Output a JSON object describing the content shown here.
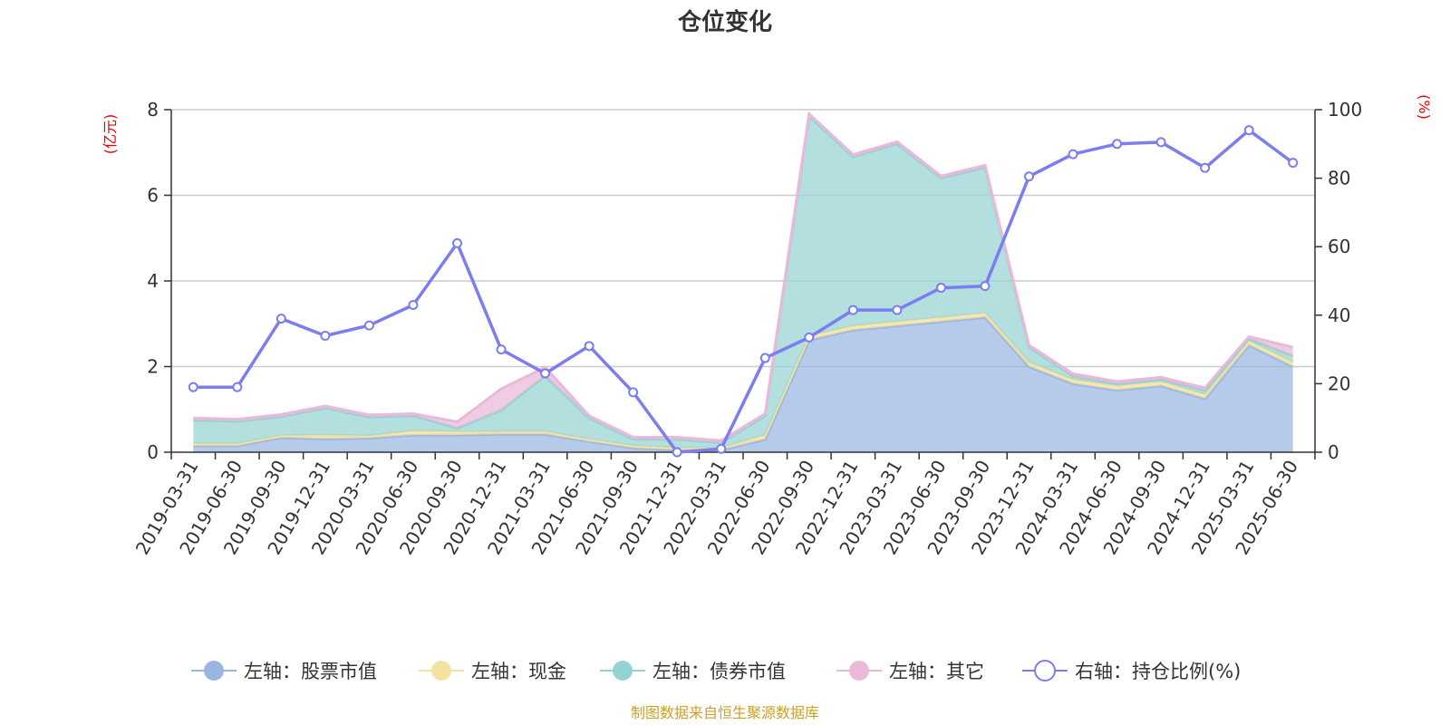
{
  "chart_data": {
    "type": "area",
    "title": "仓位变化",
    "left_unit": "(亿元)",
    "right_unit": "(%)",
    "categories": [
      "2019-03-31",
      "2019-06-30",
      "2019-09-30",
      "2019-12-31",
      "2020-03-31",
      "2020-06-30",
      "2020-09-30",
      "2020-12-31",
      "2021-03-31",
      "2021-06-30",
      "2021-09-30",
      "2021-12-31",
      "2022-03-31",
      "2022-06-30",
      "2022-09-30",
      "2022-12-31",
      "2023-03-31",
      "2023-06-30",
      "2023-09-30",
      "2023-12-31",
      "2024-03-31",
      "2024-06-30",
      "2024-09-30",
      "2024-12-31",
      "2025-03-31",
      "2025-06-30"
    ],
    "left_axis": {
      "min": 0,
      "max": 8,
      "ticks": [
        0,
        2,
        4,
        6,
        8
      ]
    },
    "right_axis": {
      "min": 0,
      "max": 100,
      "ticks": [
        0,
        20,
        40,
        60,
        80,
        100
      ]
    },
    "grid": true,
    "legend_position": "bottom",
    "series": [
      {
        "name": "左轴：股票市值",
        "axis": "left",
        "stack": true,
        "color": "#9ab5e0",
        "values": [
          0.15,
          0.15,
          0.34,
          0.31,
          0.33,
          0.4,
          0.4,
          0.42,
          0.42,
          0.25,
          0.1,
          0.05,
          0.05,
          0.3,
          2.62,
          2.85,
          2.95,
          3.05,
          3.15,
          2.0,
          1.6,
          1.45,
          1.55,
          1.25,
          2.5,
          2.0
        ]
      },
      {
        "name": "左轴：现金",
        "axis": "left",
        "stack": true,
        "color": "#f4e2a0",
        "values": [
          0.05,
          0.05,
          0.05,
          0.09,
          0.05,
          0.1,
          0.08,
          0.06,
          0.06,
          0.05,
          0.05,
          0.05,
          0.05,
          0.1,
          0.1,
          0.1,
          0.1,
          0.1,
          0.1,
          0.1,
          0.1,
          0.1,
          0.1,
          0.1,
          0.1,
          0.1
        ]
      },
      {
        "name": "左轴：债券市值",
        "axis": "left",
        "stack": true,
        "color": "#95d3d2",
        "values": [
          0.55,
          0.52,
          0.44,
          0.63,
          0.44,
          0.35,
          0.08,
          0.5,
          1.3,
          0.5,
          0.15,
          0.2,
          0.12,
          0.45,
          5.13,
          3.95,
          4.15,
          3.25,
          3.4,
          0.35,
          0.08,
          0.05,
          0.05,
          0.1,
          0.05,
          0.15
        ]
      },
      {
        "name": "左轴：其它",
        "axis": "left",
        "stack": true,
        "color": "#e9b8da",
        "values": [
          0.05,
          0.05,
          0.05,
          0.05,
          0.05,
          0.05,
          0.15,
          0.5,
          0.2,
          0.05,
          0.05,
          0.05,
          0.05,
          0.05,
          0.05,
          0.05,
          0.05,
          0.05,
          0.05,
          0.05,
          0.05,
          0.05,
          0.05,
          0.05,
          0.05,
          0.2
        ]
      },
      {
        "name": "右轴：持仓比例(%)",
        "axis": "right",
        "stack": false,
        "color": "#7b7df0",
        "values": [
          19,
          19,
          39,
          34,
          37,
          43,
          61,
          30,
          23,
          31,
          17.5,
          0,
          1,
          27.5,
          33.5,
          41.5,
          41.5,
          48,
          48.5,
          80.5,
          87,
          90,
          90.5,
          83,
          94,
          84.5
        ]
      }
    ]
  },
  "footer": "制图数据来自恒生聚源数据库",
  "colors": {
    "left_unit": "#e60000",
    "right_unit": "#e60000",
    "footer": "#c9a227",
    "grid": "#cccccc",
    "axis": "#333333"
  }
}
